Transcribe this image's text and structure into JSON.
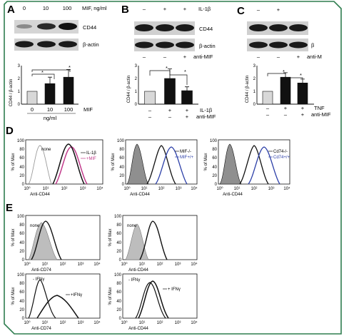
{
  "panels": {
    "A": {
      "label": "A",
      "blot": {
        "conditions": [
          "0",
          "10",
          "100"
        ],
        "condition_unit": "MIF, ng/ml",
        "bands": [
          "CD44",
          "β-actin"
        ]
      },
      "bar": {
        "ylabel": "CD44 / β-actin",
        "yticks": [
          "0",
          "1",
          "2",
          "3"
        ],
        "xticks": [
          "0",
          "10",
          "100"
        ],
        "xsub": "ng/ml",
        "xname": "MIF",
        "stars": [
          "*",
          "*"
        ]
      }
    },
    "B": {
      "label": "B",
      "blot": {
        "rows": [
          {
            "name": "IL-1β",
            "signs": [
              "–",
              "+",
              "+"
            ]
          },
          {
            "name": "anti-MIF",
            "signs": [
              "–",
              "–",
              "+"
            ]
          }
        ],
        "bands": [
          "CD44",
          "β-actin"
        ]
      },
      "bar": {
        "ylabel": "CD44 / β-actin",
        "yticks": [
          "0",
          "1",
          "2",
          "3"
        ],
        "rows": [
          {
            "name": "IL-1β",
            "signs": [
              "–",
              "+",
              "+"
            ]
          },
          {
            "name": "anti-MIF",
            "signs": [
              "–",
              "–",
              "+"
            ]
          }
        ],
        "stars": [
          "*",
          "*"
        ]
      }
    },
    "C": {
      "label": "C",
      "blot": {
        "rows": [
          {
            "name": "",
            "signs": [
              "–",
              "+",
              ""
            ]
          },
          {
            "name": "anti-M",
            "signs": [
              "–",
              "–",
              "+"
            ]
          }
        ],
        "bands": [
          "",
          "β"
        ]
      },
      "bar": {
        "ylabel": "CD44 / β-actin",
        "yticks": [
          "0",
          "1",
          "2",
          "3"
        ],
        "rows": [
          {
            "name": "TNF",
            "signs": [
              "–",
              "+",
              "+"
            ]
          },
          {
            "name": "anti-MIF",
            "signs": [
              "–",
              "–",
              "+"
            ]
          }
        ],
        "stars": [
          "*",
          "*"
        ]
      }
    },
    "D": {
      "label": "D",
      "plots": [
        {
          "ylabel": "% of Max",
          "xlabel": "Anti-CD44",
          "legend": [
            "none",
            "IL-1β",
            "+MIF"
          ]
        },
        {
          "ylabel": "% of Max",
          "xlabel": "Anti-CD44",
          "legend": [
            "MIF-/-",
            "MIF+/+"
          ]
        },
        {
          "ylabel": "% of Max",
          "xlabel": "Anti-CD44",
          "legend": [
            "Cd74-/-",
            "Cd74+/+"
          ]
        }
      ]
    },
    "E": {
      "label": "E",
      "plots": [
        {
          "ylabel": "% of Max",
          "xlabel": "Anti-CD74",
          "legend": [
            "none"
          ]
        },
        {
          "ylabel": "% of Max",
          "xlabel": "Anti-CD44",
          "legend": [
            "none"
          ]
        },
        {
          "ylabel": "% of Max",
          "xlabel": "Anti-CD74",
          "legend": [
            "- IFNγ",
            "+IFNγ"
          ]
        },
        {
          "ylabel": "% of Max",
          "xlabel": "Anti-CD44",
          "legend": [
            "- IFNγ",
            "+ IFNγ"
          ]
        }
      ]
    }
  },
  "hist_axis": {
    "yticks": [
      "0",
      "20",
      "40",
      "60",
      "80",
      "100"
    ],
    "xticks": [
      "10⁰",
      "10¹",
      "10²",
      "10³",
      "10⁴"
    ]
  },
  "chart_data": [
    {
      "type": "bar",
      "panel": "A",
      "categories": [
        "0",
        "10",
        "100"
      ],
      "values": [
        1.0,
        1.6,
        2.1
      ],
      "errors": [
        0.0,
        0.5,
        0.6
      ],
      "colors": [
        "#d8d8d8",
        "#111111",
        "#111111"
      ],
      "ylabel": "CD44 / β-actin",
      "ylim": [
        0,
        3
      ]
    },
    {
      "type": "bar",
      "panel": "B",
      "categories": [
        "–/–",
        "+/–",
        "+/+"
      ],
      "values": [
        1.0,
        2.0,
        1.05
      ],
      "errors": [
        0.0,
        0.75,
        0.3
      ],
      "colors": [
        "#d8d8d8",
        "#111111",
        "#111111"
      ],
      "ylabel": "CD44 / β-actin",
      "ylim": [
        0,
        3
      ]
    },
    {
      "type": "bar",
      "panel": "C",
      "categories": [
        "–/–",
        "+/–",
        "+/+"
      ],
      "values": [
        1.0,
        2.1,
        1.65
      ],
      "errors": [
        0.0,
        0.35,
        0.3
      ],
      "colors": [
        "#d8d8d8",
        "#111111",
        "#111111"
      ],
      "ylabel": "CD44 / β-actin",
      "ylim": [
        0,
        3
      ]
    }
  ],
  "colors": {
    "frame": "#2f7d4f",
    "pink": "#c0398a",
    "blue": "#2c3fa8",
    "fill_gray": "#8f8f8f"
  }
}
